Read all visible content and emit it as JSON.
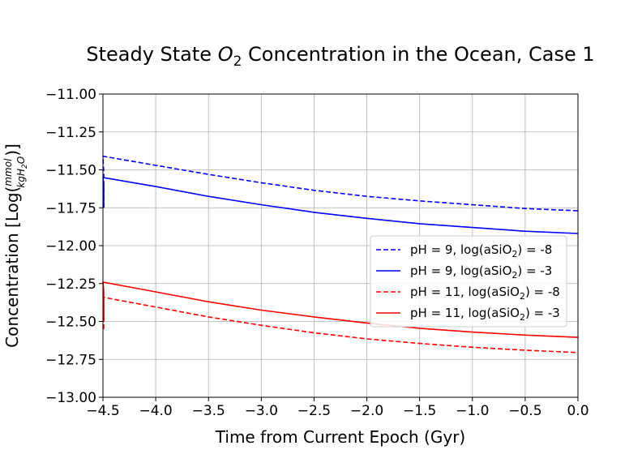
{
  "chart_data": {
    "type": "line",
    "title_prefix": "Steady State ",
    "title_symbol": "O",
    "title_subscript": "2",
    "title_suffix": " Concentration in the Ocean, Case 1",
    "xlabel": "Time from Current Epoch (Gyr)",
    "ylabel_prefix": "Concentration [Log(",
    "ylabel_frac_num": "mmol",
    "ylabel_frac_den_pre": "kgH",
    "ylabel_frac_den_sub": "2",
    "ylabel_frac_den_post": "O",
    "ylabel_suffix": ")]",
    "xlim": [
      -4.5,
      0.0
    ],
    "ylim": [
      -13.0,
      -11.0
    ],
    "xticks": [
      -4.5,
      -4.0,
      -3.5,
      -3.0,
      -2.5,
      -2.0,
      -1.5,
      -1.0,
      -0.5,
      0.0
    ],
    "xtick_labels": [
      "−4.5",
      "−4.0",
      "−3.5",
      "−3.0",
      "−2.5",
      "−2.0",
      "−1.5",
      "−1.0",
      "−0.5",
      "0.0"
    ],
    "yticks": [
      -11.0,
      -11.25,
      -11.5,
      -11.75,
      -12.0,
      -12.25,
      -12.5,
      -12.75,
      -13.0
    ],
    "ytick_labels": [
      "−11.00",
      "−11.25",
      "−11.50",
      "−11.75",
      "−12.00",
      "−12.25",
      "−12.50",
      "−12.75",
      "−13.00"
    ],
    "grid": true,
    "legend_position": "center-right",
    "series": [
      {
        "name_pre": "pH = 9, log(aSiO",
        "name_sub": "2",
        "name_post": ") = -8",
        "color": "#0000ff",
        "style": "dashed",
        "x": [
          -4.5,
          -4.5,
          -4.5,
          -4.0,
          -3.5,
          -3.0,
          -2.5,
          -2.0,
          -1.5,
          -1.0,
          -0.5,
          0.0
        ],
        "y": [
          -11.75,
          -11.52,
          -11.41,
          -11.47,
          -11.53,
          -11.585,
          -11.635,
          -11.675,
          -11.705,
          -11.73,
          -11.755,
          -11.77
        ]
      },
      {
        "name_pre": "pH = 9, log(aSiO",
        "name_sub": "2",
        "name_post": ") = -3",
        "color": "#0000ff",
        "style": "solid",
        "x": [
          -4.5,
          -4.5,
          -4.5,
          -4.0,
          -3.5,
          -3.0,
          -2.5,
          -2.0,
          -1.5,
          -1.0,
          -0.5,
          0.0
        ],
        "y": [
          -11.75,
          -11.6,
          -11.55,
          -11.61,
          -11.675,
          -11.73,
          -11.78,
          -11.82,
          -11.855,
          -11.88,
          -11.905,
          -11.92
        ]
      },
      {
        "name_pre": "pH = 11, log(aSiO",
        "name_sub": "2",
        "name_post": ") = -8",
        "color": "#ff0000",
        "style": "dashed",
        "x": [
          -4.5,
          -4.5,
          -4.5,
          -4.0,
          -3.5,
          -3.0,
          -2.5,
          -2.0,
          -1.5,
          -1.0,
          -0.5,
          0.0
        ],
        "y": [
          -12.55,
          -12.4,
          -12.34,
          -12.405,
          -12.47,
          -12.525,
          -12.575,
          -12.615,
          -12.645,
          -12.67,
          -12.69,
          -12.705
        ]
      },
      {
        "name_pre": "pH = 11, log(aSiO",
        "name_sub": "2",
        "name_post": ") = -3",
        "color": "#ff0000",
        "style": "solid",
        "x": [
          -4.5,
          -4.5,
          -4.5,
          -4.0,
          -3.5,
          -3.0,
          -2.5,
          -2.0,
          -1.5,
          -1.0,
          -0.5,
          0.0
        ],
        "y": [
          -12.5,
          -12.3,
          -12.24,
          -12.305,
          -12.37,
          -12.425,
          -12.47,
          -12.51,
          -12.545,
          -12.57,
          -12.59,
          -12.605
        ]
      }
    ]
  }
}
